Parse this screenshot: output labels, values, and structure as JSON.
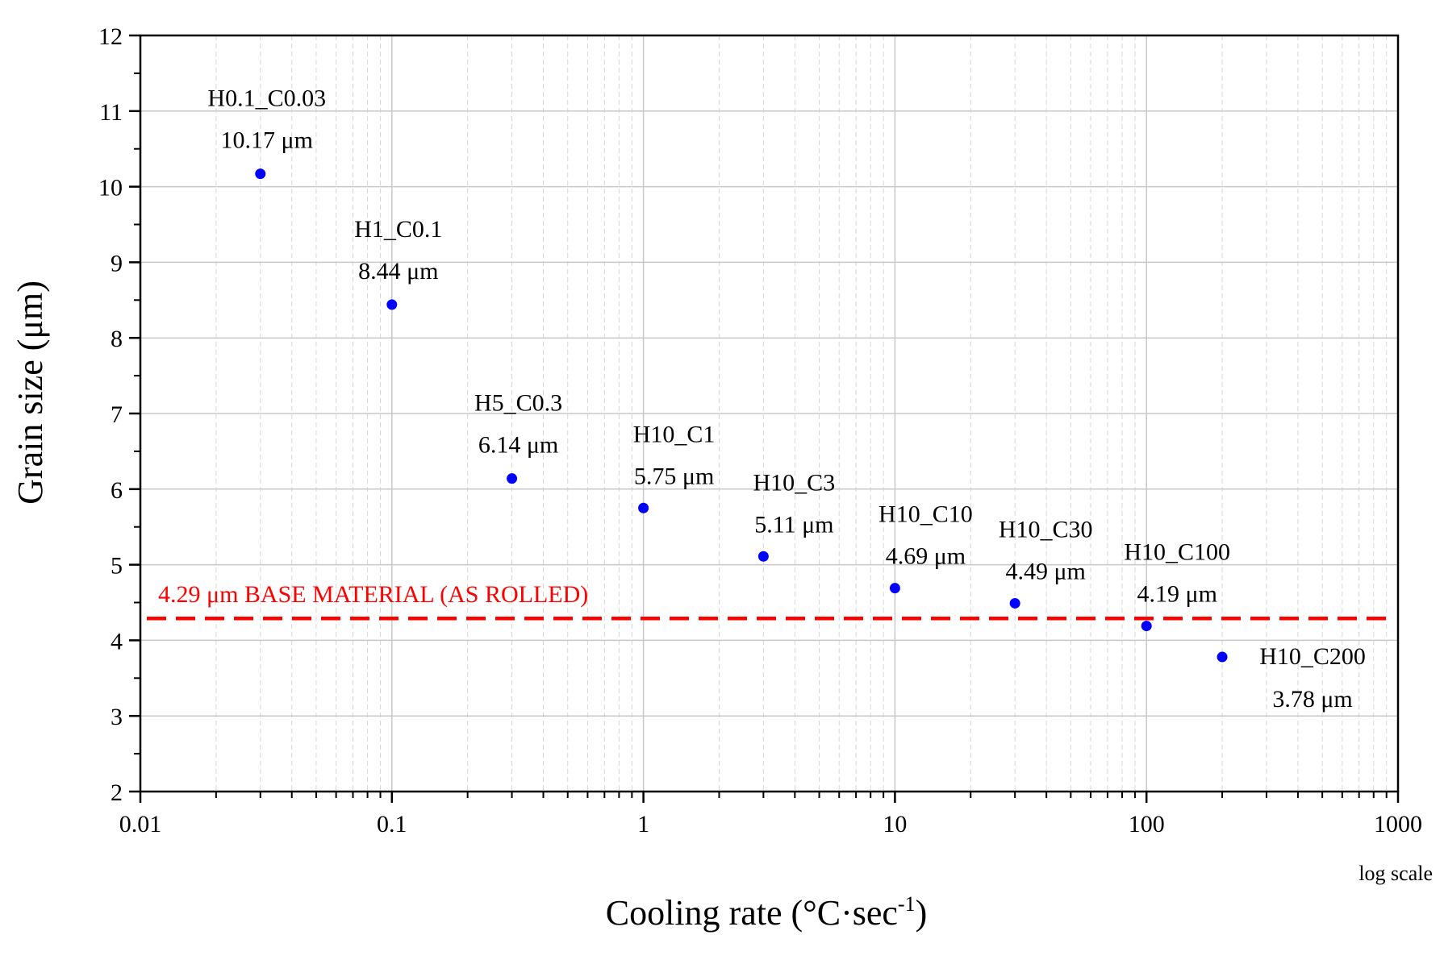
{
  "chart_data": {
    "type": "scatter",
    "xlabel": "Cooling rate (°C·sec",
    "xlabel_superscript": "-1",
    "xlabel_close": ")",
    "ylabel": "Grain size (μm)",
    "xscale": "log",
    "xscale_note": "log scale",
    "xlim": [
      0.01,
      1000
    ],
    "ylim": [
      2,
      12
    ],
    "x_ticks": [
      0.01,
      0.1,
      1,
      10,
      100,
      1000
    ],
    "x_tick_labels": [
      "0.01",
      "0.1",
      "1",
      "10",
      "100",
      "1000"
    ],
    "y_ticks": [
      2,
      3,
      4,
      5,
      6,
      7,
      8,
      9,
      10,
      11,
      12
    ],
    "y_tick_labels": [
      "2",
      "3",
      "4",
      "5",
      "6",
      "7",
      "8",
      "9",
      "10",
      "11",
      "12"
    ],
    "grid": true,
    "marker_color": "#0000ff",
    "points": [
      {
        "x": 0.03,
        "y": 10.17,
        "name": "H0.1_C0.03",
        "value_label": "10.17 μm",
        "label_side": "above"
      },
      {
        "x": 0.1,
        "y": 8.44,
        "name": "H1_C0.1",
        "value_label": "8.44 μm",
        "label_side": "above"
      },
      {
        "x": 0.3,
        "y": 6.14,
        "name": "H5_C0.3",
        "value_label": "6.14 μm",
        "label_side": "above"
      },
      {
        "x": 1,
        "y": 5.75,
        "name": "H10_C1",
        "value_label": "5.75 μm",
        "label_side": "above-right"
      },
      {
        "x": 3,
        "y": 5.11,
        "name": "H10_C3",
        "value_label": "5.11 μm",
        "label_side": "above-right"
      },
      {
        "x": 10,
        "y": 4.69,
        "name": "H10_C10",
        "value_label": "4.69 μm",
        "label_side": "above-right"
      },
      {
        "x": 30,
        "y": 4.49,
        "name": "H10_C30",
        "value_label": "4.49 μm",
        "label_side": "above-right"
      },
      {
        "x": 100,
        "y": 4.19,
        "name": "H10_C100",
        "value_label": "4.19 μm",
        "label_side": "above-right"
      },
      {
        "x": 200,
        "y": 3.78,
        "name": "H10_C200",
        "value_label": "3.78 μm",
        "label_side": "right"
      }
    ],
    "reference_line": {
      "y": 4.29,
      "label": "4.29 μm BASE MATERIAL (AS ROLLED)",
      "color": "#ff0000",
      "style": "dashed"
    }
  }
}
